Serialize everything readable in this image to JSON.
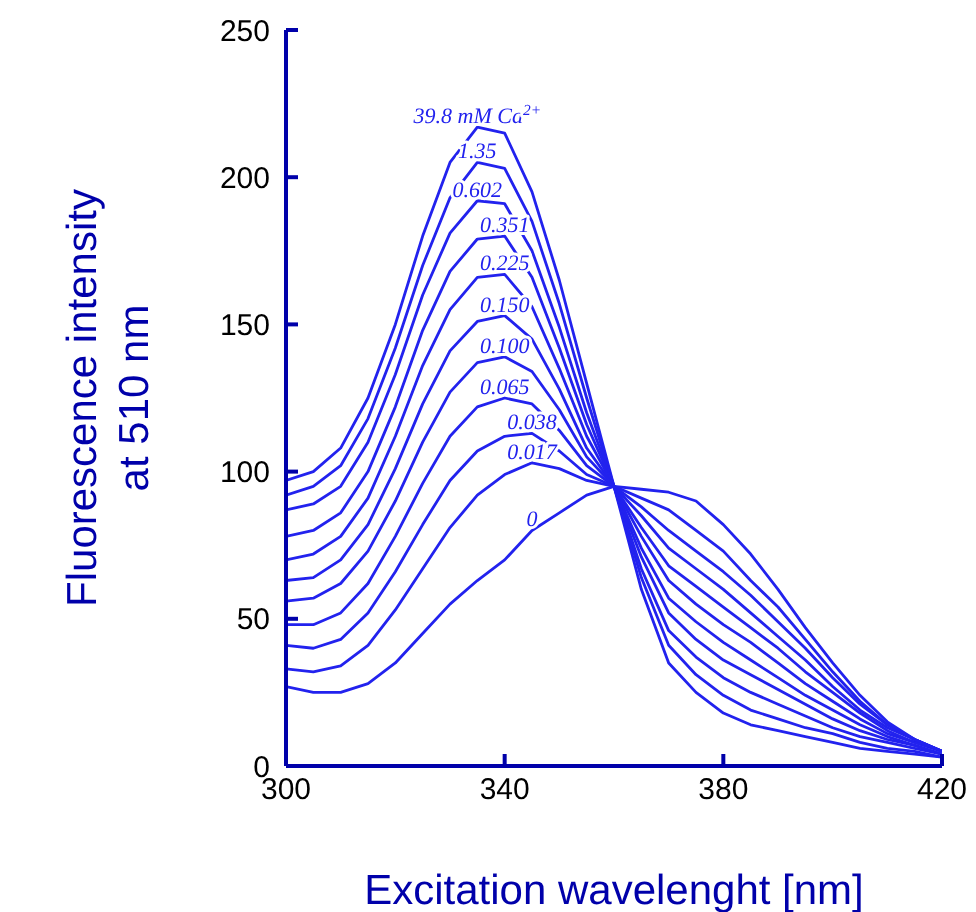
{
  "chart_data": {
    "type": "line",
    "xlabel": "Excitation wavelenght [nm]",
    "ylabel": "Fluorescence intensity\nat 510 nm",
    "x": [
      300,
      305,
      310,
      315,
      320,
      325,
      330,
      335,
      340,
      345,
      350,
      355,
      360,
      365,
      370,
      375,
      380,
      385,
      390,
      395,
      400,
      405,
      410,
      415,
      420
    ],
    "xlim": [
      300,
      420
    ],
    "xticks": [
      300,
      340,
      380,
      420
    ],
    "ylim": [
      0,
      250
    ],
    "yticks": [
      0,
      50,
      100,
      150,
      200,
      250
    ],
    "grid": false,
    "legend": false,
    "marker": "none",
    "line_style": "solid",
    "series": [
      {
        "name": "39.8 mM Ca$^{2+}$",
        "color": "#2222ee",
        "values": [
          97,
          100,
          108,
          125,
          150,
          180,
          205,
          217,
          215,
          195,
          165,
          130,
          95,
          60,
          35,
          25,
          18,
          14,
          12,
          10,
          8,
          6,
          5,
          4,
          3
        ]
      },
      {
        "name": "1.35",
        "color": "#2222ee",
        "values": [
          92,
          95,
          102,
          118,
          142,
          170,
          193,
          205,
          203,
          185,
          157,
          125,
          95,
          64,
          41,
          31,
          24,
          19,
          16,
          13,
          11,
          8,
          6,
          5,
          3
        ]
      },
      {
        "name": "0.602",
        "color": "#2222ee",
        "values": [
          87,
          89,
          95,
          110,
          133,
          160,
          181,
          192,
          191,
          175,
          149,
          120,
          95,
          67,
          46,
          37,
          30,
          25,
          21,
          17,
          13,
          10,
          8,
          6,
          4
        ]
      },
      {
        "name": "0.351",
        "color": "#2222ee",
        "values": [
          78,
          80,
          86,
          100,
          122,
          148,
          168,
          179,
          180,
          166,
          142,
          116,
          95,
          71,
          52,
          43,
          36,
          31,
          26,
          21,
          16,
          12,
          9,
          7,
          4
        ]
      },
      {
        "name": "0.225",
        "color": "#2222ee",
        "values": [
          70,
          72,
          78,
          91,
          112,
          136,
          155,
          166,
          167,
          156,
          135,
          112,
          95,
          74,
          57,
          49,
          42,
          36,
          30,
          24,
          19,
          14,
          10,
          7,
          4
        ]
      },
      {
        "name": "0.150",
        "color": "#2222ee",
        "values": [
          63,
          64,
          70,
          82,
          101,
          123,
          141,
          151,
          153,
          145,
          128,
          108,
          95,
          78,
          63,
          55,
          48,
          42,
          35,
          28,
          22,
          16,
          11,
          8,
          5
        ]
      },
      {
        "name": "0.100",
        "color": "#2222ee",
        "values": [
          56,
          57,
          62,
          73,
          90,
          110,
          127,
          137,
          139,
          134,
          121,
          105,
          95,
          81,
          68,
          61,
          54,
          47,
          40,
          32,
          25,
          18,
          12,
          8,
          5
        ]
      },
      {
        "name": "0.065",
        "color": "#2222ee",
        "values": [
          48,
          48,
          52,
          62,
          78,
          96,
          112,
          122,
          125,
          123,
          114,
          102,
          95,
          85,
          74,
          67,
          60,
          52,
          44,
          36,
          27,
          19,
          13,
          9,
          5
        ]
      },
      {
        "name": "0.038",
        "color": "#2222ee",
        "values": [
          41,
          40,
          43,
          52,
          66,
          82,
          97,
          107,
          112,
          113,
          107,
          99,
          95,
          88,
          80,
          73,
          66,
          58,
          49,
          40,
          30,
          21,
          14,
          9,
          5
        ]
      },
      {
        "name": "0.017",
        "color": "#2222ee",
        "values": [
          33,
          32,
          34,
          41,
          53,
          67,
          81,
          92,
          99,
          103,
          101,
          97,
          95,
          91,
          87,
          80,
          73,
          63,
          54,
          43,
          32,
          22,
          14,
          9,
          5
        ]
      },
      {
        "name": "0",
        "color": "#2222ee",
        "values": [
          27,
          25,
          25,
          28,
          35,
          45,
          55,
          63,
          70,
          80,
          86,
          92,
          95,
          94,
          93,
          90,
          82,
          72,
          60,
          47,
          35,
          24,
          15,
          9,
          5
        ]
      }
    ]
  }
}
